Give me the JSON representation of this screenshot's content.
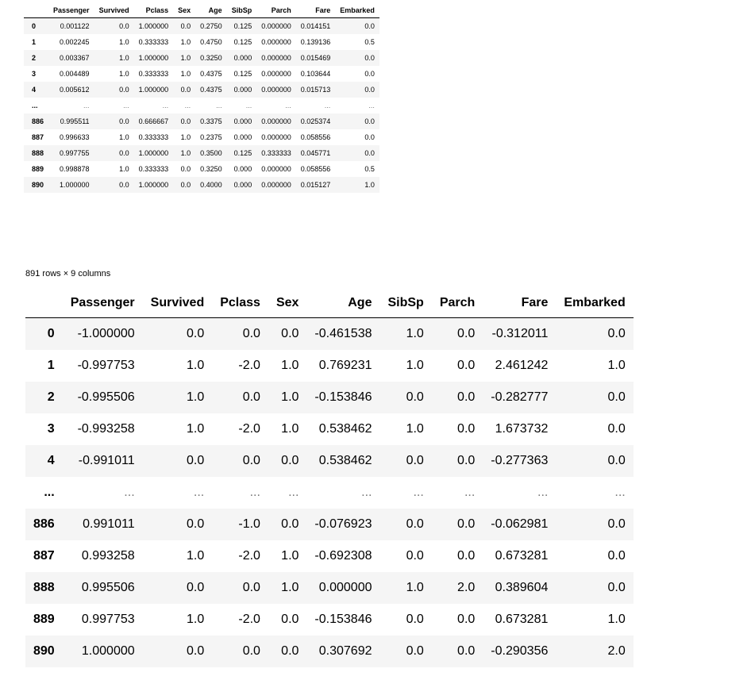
{
  "top_table": {
    "columns": [
      "",
      "Passenger",
      "Survived",
      "Pclass",
      "Sex",
      "Age",
      "SibSp",
      "Parch",
      "Fare",
      "Embarked"
    ],
    "rows": [
      [
        "0",
        "0.001122",
        "0.0",
        "1.000000",
        "0.0",
        "0.2750",
        "0.125",
        "0.000000",
        "0.014151",
        "0.0"
      ],
      [
        "1",
        "0.002245",
        "1.0",
        "0.333333",
        "1.0",
        "0.4750",
        "0.125",
        "0.000000",
        "0.139136",
        "0.5"
      ],
      [
        "2",
        "0.003367",
        "1.0",
        "1.000000",
        "1.0",
        "0.3250",
        "0.000",
        "0.000000",
        "0.015469",
        "0.0"
      ],
      [
        "3",
        "0.004489",
        "1.0",
        "0.333333",
        "1.0",
        "0.4375",
        "0.125",
        "0.000000",
        "0.103644",
        "0.0"
      ],
      [
        "4",
        "0.005612",
        "0.0",
        "1.000000",
        "0.0",
        "0.4375",
        "0.000",
        "0.000000",
        "0.015713",
        "0.0"
      ],
      [
        "...",
        "...",
        "...",
        "...",
        "...",
        "...",
        "...",
        "...",
        "...",
        "..."
      ],
      [
        "886",
        "0.995511",
        "0.0",
        "0.666667",
        "0.0",
        "0.3375",
        "0.000",
        "0.000000",
        "0.025374",
        "0.0"
      ],
      [
        "887",
        "0.996633",
        "1.0",
        "0.333333",
        "1.0",
        "0.2375",
        "0.000",
        "0.000000",
        "0.058556",
        "0.0"
      ],
      [
        "888",
        "0.997755",
        "0.0",
        "1.000000",
        "1.0",
        "0.3500",
        "0.125",
        "0.333333",
        "0.045771",
        "0.0"
      ],
      [
        "889",
        "0.998878",
        "1.0",
        "0.333333",
        "0.0",
        "0.3250",
        "0.000",
        "0.000000",
        "0.058556",
        "0.5"
      ],
      [
        "890",
        "1.000000",
        "0.0",
        "1.000000",
        "0.0",
        "0.4000",
        "0.000",
        "0.000000",
        "0.015127",
        "1.0"
      ]
    ]
  },
  "shape_caption": "891 rows × 9 columns",
  "bottom_table": {
    "columns": [
      "",
      "Passenger",
      "Survived",
      "Pclass",
      "Sex",
      "Age",
      "SibSp",
      "Parch",
      "Fare",
      "Embarked"
    ],
    "rows": [
      [
        "0",
        "-1.000000",
        "0.0",
        "0.0",
        "0.0",
        "-0.461538",
        "1.0",
        "0.0",
        "-0.312011",
        "0.0"
      ],
      [
        "1",
        "-0.997753",
        "1.0",
        "-2.0",
        "1.0",
        "0.769231",
        "1.0",
        "0.0",
        "2.461242",
        "1.0"
      ],
      [
        "2",
        "-0.995506",
        "1.0",
        "0.0",
        "1.0",
        "-0.153846",
        "0.0",
        "0.0",
        "-0.282777",
        "0.0"
      ],
      [
        "3",
        "-0.993258",
        "1.0",
        "-2.0",
        "1.0",
        "0.538462",
        "1.0",
        "0.0",
        "1.673732",
        "0.0"
      ],
      [
        "4",
        "-0.991011",
        "0.0",
        "0.0",
        "0.0",
        "0.538462",
        "0.0",
        "0.0",
        "-0.277363",
        "0.0"
      ],
      [
        "...",
        "...",
        "...",
        "...",
        "...",
        "...",
        "...",
        "...",
        "...",
        "..."
      ],
      [
        "886",
        "0.991011",
        "0.0",
        "-1.0",
        "0.0",
        "-0.076923",
        "0.0",
        "0.0",
        "-0.062981",
        "0.0"
      ],
      [
        "887",
        "0.993258",
        "1.0",
        "-2.0",
        "1.0",
        "-0.692308",
        "0.0",
        "0.0",
        "0.673281",
        "0.0"
      ],
      [
        "888",
        "0.995506",
        "0.0",
        "0.0",
        "1.0",
        "0.000000",
        "1.0",
        "2.0",
        "0.389604",
        "0.0"
      ],
      [
        "889",
        "0.997753",
        "1.0",
        "-2.0",
        "0.0",
        "-0.153846",
        "0.0",
        "0.0",
        "0.673281",
        "1.0"
      ],
      [
        "890",
        "1.000000",
        "0.0",
        "0.0",
        "0.0",
        "0.307692",
        "0.0",
        "0.0",
        "-0.290356",
        "2.0"
      ]
    ]
  }
}
